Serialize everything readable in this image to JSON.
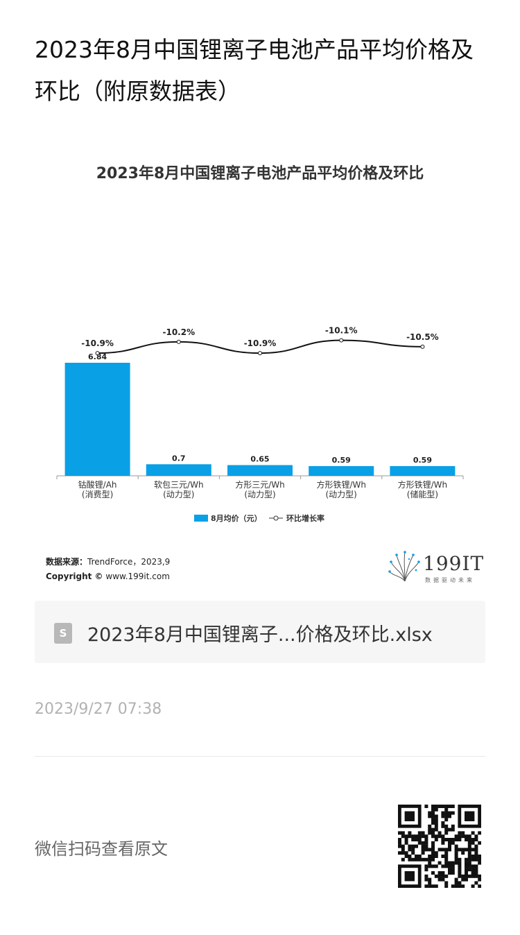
{
  "article": {
    "title": "2023年8月中国锂离子电池产品平均价格及环比（附原数据表）"
  },
  "chart": {
    "title": "2023年8月中国锂离子电池产品平均价格及环比",
    "legend_bar": "8月均价（元）",
    "legend_line": "环比增长率",
    "source_label": "数据来源：",
    "source_value": "TrendForce，2023,9",
    "copyright_label": "Copyright ©",
    "copyright_value": "www.199it.com"
  },
  "chart_data": {
    "type": "bar",
    "title": "2023年8月中国锂离子电池产品平均价格及环比",
    "categories": [
      [
        "钴酸锂/Ah",
        "(消费型)"
      ],
      [
        "软包三元/Wh",
        "(动力型)"
      ],
      [
        "方形三元/Wh",
        "(动力型)"
      ],
      [
        "方形铁锂/Wh",
        "(动力型)"
      ],
      [
        "方形铁锂/Wh",
        "(储能型)"
      ]
    ],
    "series": [
      {
        "name": "8月均价（元）",
        "type": "bar",
        "values": [
          6.84,
          0.7,
          0.65,
          0.59,
          0.59
        ],
        "labels": [
          "6.84",
          "0.7",
          "0.65",
          "0.59",
          "0.59"
        ]
      },
      {
        "name": "环比增长率",
        "type": "line",
        "values": [
          -10.9,
          -10.2,
          -10.9,
          -10.1,
          -10.5
        ],
        "labels": [
          "-10.9%",
          "-10.2%",
          "-10.9%",
          "-10.1%",
          "-10.5%"
        ]
      }
    ],
    "bar_color": "#0aa0e6",
    "line_color": "#111111",
    "legend_position": "bottom",
    "grid": false
  },
  "logo": {
    "text": "199IT",
    "subtitle": "数据驱动未来"
  },
  "attachment": {
    "icon": "spreadsheet-file-icon",
    "icon_letter": "S",
    "file_name": "2023年8月中国锂离子...价格及环比.xlsx"
  },
  "meta": {
    "timestamp": "2023/9/27 07:38",
    "qr_hint": "微信扫码查看原文"
  }
}
